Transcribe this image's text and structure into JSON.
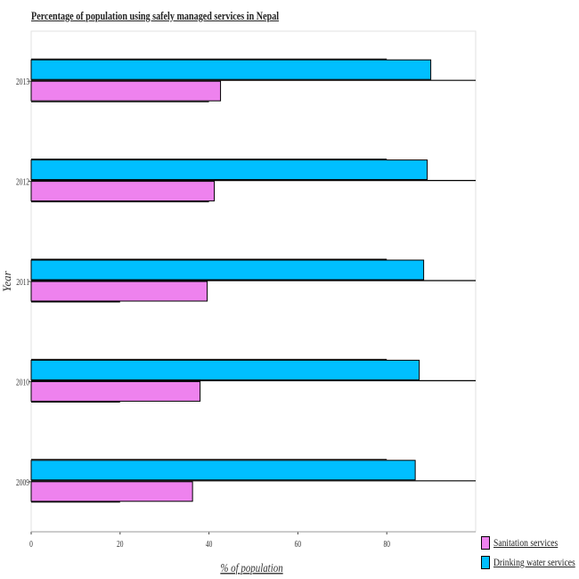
{
  "chart_data": {
    "type": "bar",
    "orientation": "horizontal",
    "title": "Percentage of population using safely managed services in Nepal",
    "xlabel": "% of population",
    "ylabel": "Year",
    "categories": [
      "2009",
      "2010",
      "2011",
      "2012",
      "2013"
    ],
    "xlim": [
      0,
      100
    ],
    "xticks": [
      "0",
      "20",
      "40",
      "60",
      "80"
    ],
    "series": [
      {
        "name": "Sanitation services",
        "color": "#ee82ee",
        "values": [
          36.3,
          38,
          39.6,
          41.2,
          42.6
        ]
      },
      {
        "name": "Drinking water services",
        "color": "#00bfff",
        "values": [
          86.4,
          87.3,
          88.3,
          89.1,
          89.9
        ]
      }
    ],
    "legend": "bottom-right"
  }
}
